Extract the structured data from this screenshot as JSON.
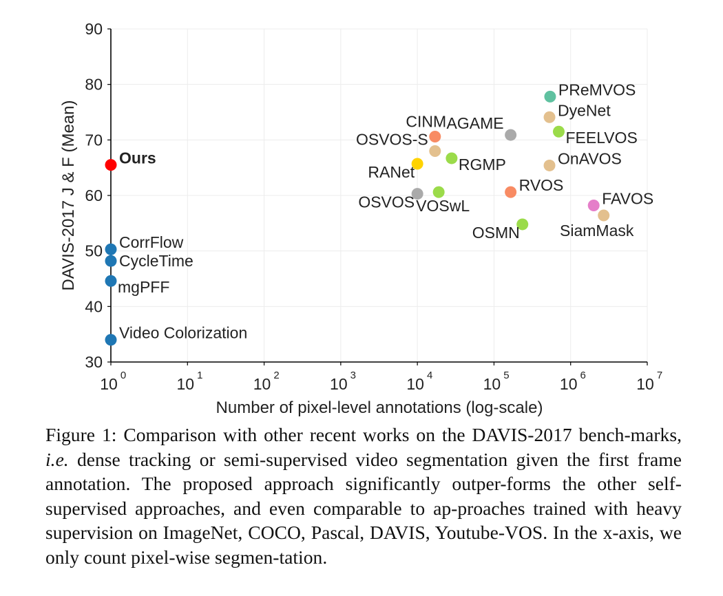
{
  "chart_data": {
    "type": "scatter",
    "xscale": "log",
    "xlim": [
      1,
      10000000
    ],
    "ylim": [
      30,
      90
    ],
    "xticks": [
      {
        "value": 1,
        "base": "10",
        "exp": "0"
      },
      {
        "value": 10,
        "base": "10",
        "exp": "1"
      },
      {
        "value": 100,
        "base": "10",
        "exp": "2"
      },
      {
        "value": 1000,
        "base": "10",
        "exp": "3"
      },
      {
        "value": 10000,
        "base": "10",
        "exp": "4"
      },
      {
        "value": 100000,
        "base": "10",
        "exp": "5"
      },
      {
        "value": 1000000,
        "base": "10",
        "exp": "6"
      },
      {
        "value": 10000000,
        "base": "10",
        "exp": "7"
      }
    ],
    "yticks": [
      "30",
      "40",
      "50",
      "60",
      "70",
      "80",
      "90"
    ],
    "xlabel": "Number of pixel-level annotations (log-scale)",
    "ylabel": "DAVIS-2017 J & F (Mean)",
    "grid": true,
    "points": [
      {
        "label": "Ours",
        "x": 1,
        "y": 65.5,
        "color": "#ff0000",
        "bold": true,
        "label_pos": "right-up"
      },
      {
        "label": "CorrFlow",
        "x": 1,
        "y": 50.3,
        "color": "#1f77b4",
        "label_pos": "right-up"
      },
      {
        "label": "CycleTime",
        "x": 1,
        "y": 48.2,
        "color": "#1f77b4",
        "label_pos": "right"
      },
      {
        "label": "mgPFF",
        "x": 1,
        "y": 44.6,
        "color": "#1f77b4",
        "label_pos": "right-down"
      },
      {
        "label": "Video Colorization",
        "x": 1,
        "y": 34.0,
        "color": "#1f77b4",
        "label_pos": "right-up"
      },
      {
        "label": "PReMVOS",
        "x": 540000,
        "y": 77.8,
        "color": "#5fc1a0",
        "label_pos": "right-up"
      },
      {
        "label": "DyeNet",
        "x": 530000,
        "y": 74.1,
        "color": "#e3c08e",
        "label_pos": "right-up"
      },
      {
        "label": "FEELVOS",
        "x": 700000,
        "y": 71.5,
        "color": "#9bdb4a",
        "label_pos": "right-down"
      },
      {
        "label": "AGAME",
        "x": 165000,
        "y": 70.9,
        "color": "#aaaaaa",
        "label_pos": "left-up"
      },
      {
        "label": "CINM",
        "x": 17000,
        "y": 70.6,
        "color": "#f88b63",
        "label_pos": "top"
      },
      {
        "label": "OSVOS-S",
        "x": 17000,
        "y": 68.0,
        "color": "#e3c08e",
        "label_pos": "left-up"
      },
      {
        "label": "RGMP",
        "x": 28000,
        "y": 66.7,
        "color": "#9bdb4a",
        "label_pos": "right-down"
      },
      {
        "label": "RANet",
        "x": 10000,
        "y": 65.7,
        "color": "#ffd300",
        "label_pos": "left-down"
      },
      {
        "label": "OnAVOS",
        "x": 530000,
        "y": 65.4,
        "color": "#e3c08e",
        "label_pos": "right-up"
      },
      {
        "label": "OSVOS",
        "x": 10000,
        "y": 60.3,
        "color": "#aaaaaa",
        "label_pos": "left-down"
      },
      {
        "label": "VOSwL",
        "x": 19000,
        "y": 60.6,
        "color": "#9bdb4a",
        "label_pos": "below"
      },
      {
        "label": "RVOS",
        "x": 165000,
        "y": 60.6,
        "color": "#f88b63",
        "label_pos": "right-up"
      },
      {
        "label": "FAVOS",
        "x": 2000000,
        "y": 58.2,
        "color": "#e57ec9",
        "label_pos": "right-up"
      },
      {
        "label": "SiamMask",
        "x": 2700000,
        "y": 56.4,
        "color": "#e3c08e",
        "label_pos": "below-left"
      },
      {
        "label": "OSMN",
        "x": 235000,
        "y": 54.8,
        "color": "#9bdb4a",
        "label_pos": "left-down"
      }
    ]
  },
  "caption": {
    "prefix": "Figure 1: Comparison with other recent works on the DAVIS-2017 bench-marks, ",
    "ie": "i.e.",
    "rest": " dense tracking or semi-supervised video segmentation given the first frame annotation.  The proposed approach significantly outper-forms the other self-supervised approaches, and even comparable to ap-proaches trained with heavy supervision on ImageNet, COCO, Pascal, DAVIS, Youtube-VOS. In the x-axis, we only count pixel-wise segmen-tation."
  }
}
